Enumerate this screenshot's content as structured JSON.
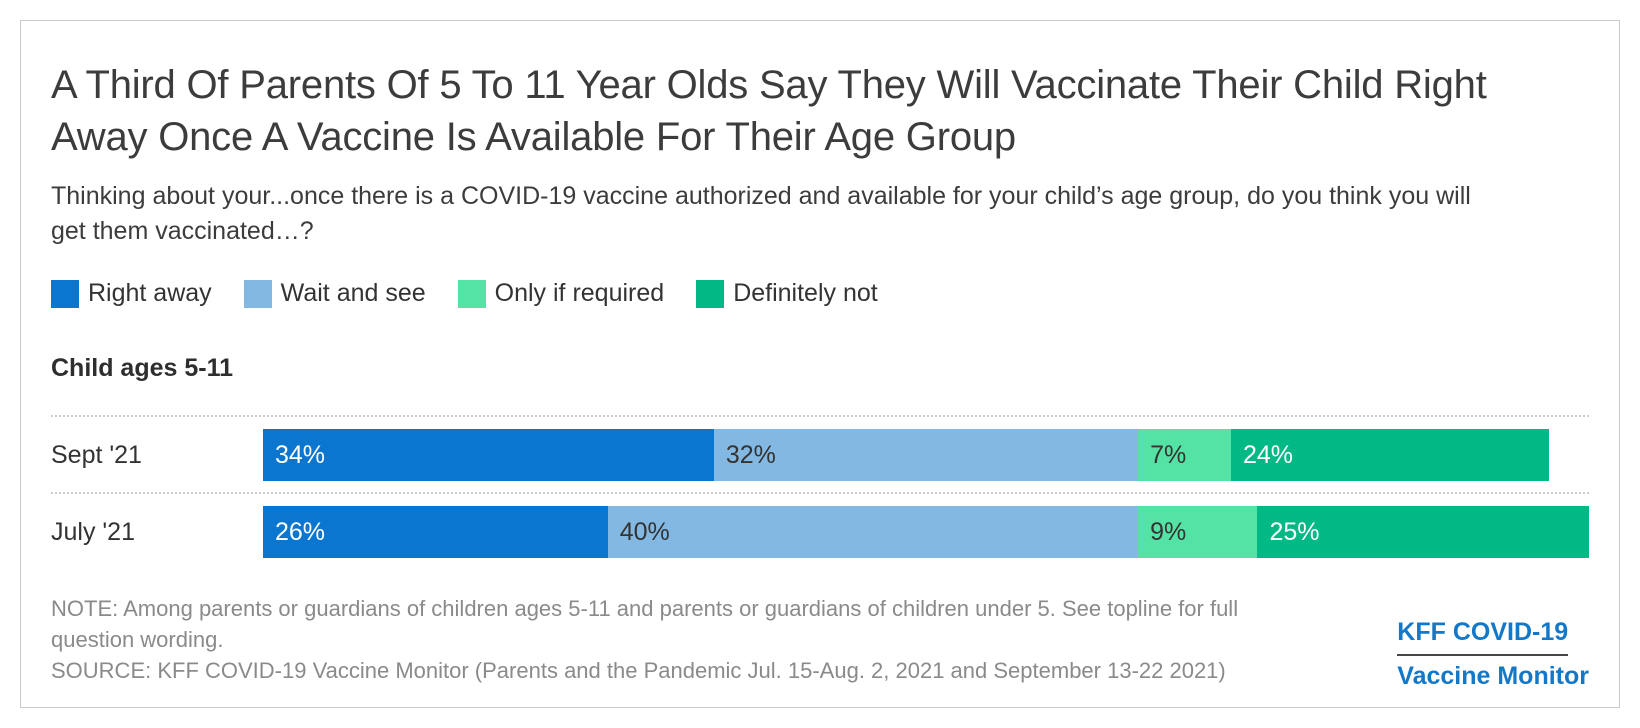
{
  "header": {
    "title": "A Third Of Parents Of 5 To 11 Year Olds Say They Will Vaccinate Their Child Right Away Once A Vaccine Is Available For Their Age Group",
    "subtitle": "Thinking about your...once there is a COVID-19 vaccine authorized and available for your child’s age group, do you think you will get them vaccinated…?"
  },
  "legend": {
    "position": "top-left",
    "items": [
      {
        "label": "Right away",
        "color": "#0a76cf"
      },
      {
        "label": "Wait and see",
        "color": "#82b8e2"
      },
      {
        "label": "Only if required",
        "color": "#55e3a5"
      },
      {
        "label": "Definitely not",
        "color": "#00b985"
      }
    ]
  },
  "section": {
    "label": "Child ages 5-11"
  },
  "chart_data": {
    "type": "bar",
    "orientation": "horizontal",
    "stacked": true,
    "unit": "%",
    "title": "A Third Of Parents Of 5 To 11 Year Olds Say They Will Vaccinate Their Child Right Away Once A Vaccine Is Available For Their Age Group",
    "group_label": "Child ages 5-11",
    "categories": [
      "Sept '21",
      "July '21"
    ],
    "series": [
      {
        "name": "Right away",
        "color": "#0a76cf",
        "text_color": "#ffffff",
        "values": [
          34,
          26
        ]
      },
      {
        "name": "Wait and see",
        "color": "#82b8e2",
        "text_color": "#333333",
        "values": [
          32,
          40
        ]
      },
      {
        "name": "Only if required",
        "color": "#55e3a5",
        "text_color": "#333333",
        "values": [
          7,
          9
        ]
      },
      {
        "name": "Definitely not",
        "color": "#00b985",
        "text_color": "#ffffff",
        "values": [
          24,
          25
        ]
      }
    ],
    "xlim": [
      0,
      100
    ],
    "grid": false,
    "value_labels": "inside-left",
    "row_separator": "dotted"
  },
  "footer": {
    "note": "NOTE: Among parents or guardians of children ages 5-11 and parents or guardians of children under 5. See topline for full question wording.",
    "source": "SOURCE: KFF COVID-19 Vaccine Monitor (Parents and the Pandemic Jul. 15-Aug. 2, 2021 and September 13-22 2021)",
    "logo": {
      "line1": "KFF COVID-19",
      "line2": "Vaccine Monitor",
      "color": "#1478c9"
    }
  }
}
